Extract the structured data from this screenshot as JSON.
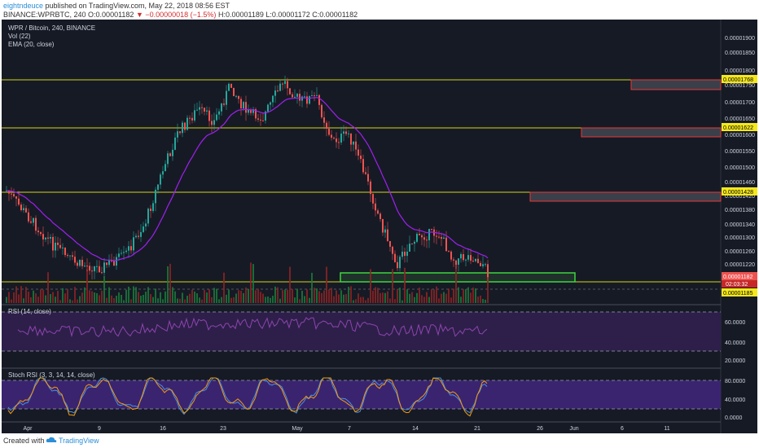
{
  "header": {
    "user": "eightndeuce",
    "published": " published on TradingView.com, May 22, 2018 08:56 EST",
    "symbol_line_prefix": "BINANCE:WPRBTC, 240 ",
    "close_val": "0.00001182",
    "change_text": "▼ −0.00000018 (−1.5%)",
    "ohlc_text": "H:0.00001189 L:0.00001172 C:0.00001182",
    "open_label": "O:",
    "open_val": "0.00001182"
  },
  "legend": {
    "title": "WPR / Bitcoin, 240, BINANCE",
    "vol": "Vol (22)",
    "ema": "EMA (20, close)",
    "rsi": "RSI (14, close)",
    "stoch": "Stoch RSI (3, 3, 14, 14, close)"
  },
  "price_axis": [
    "0.00001900",
    "0.00001850",
    "0.00001800",
    "0.00001750",
    "0.00001700",
    "0.00001650",
    "0.00001600",
    "0.00001550",
    "0.00001500",
    "0.00001460",
    "0.00001420",
    "0.00001380",
    "0.00001340",
    "0.00001300",
    "0.00001260",
    "0.00001220"
  ],
  "price_tags": {
    "r1": "0.00001768",
    "r2": "0.00001622",
    "r3": "0.00001428",
    "last": "0.00001182",
    "timer": "02:03:32",
    "support": "0.00001185"
  },
  "rsi_axis": [
    "60.0000",
    "40.0000",
    "20.0000"
  ],
  "stoch_axis": [
    "80.0000",
    "40.0000",
    "0.0000"
  ],
  "time_axis": [
    "Apr",
    "9",
    "16",
    "23",
    "May",
    "7",
    "14",
    "21",
    "26",
    "Jun",
    "6",
    "11"
  ],
  "footer": {
    "created": "Created with",
    "brand": "TradingView"
  },
  "colors": {
    "bg": "#161a25",
    "up": "#26a69a",
    "down": "#ef5350",
    "ema": "#a020f0",
    "level": "#d4d41c",
    "zone": "#e53935",
    "support": "#3fd63f"
  }
}
